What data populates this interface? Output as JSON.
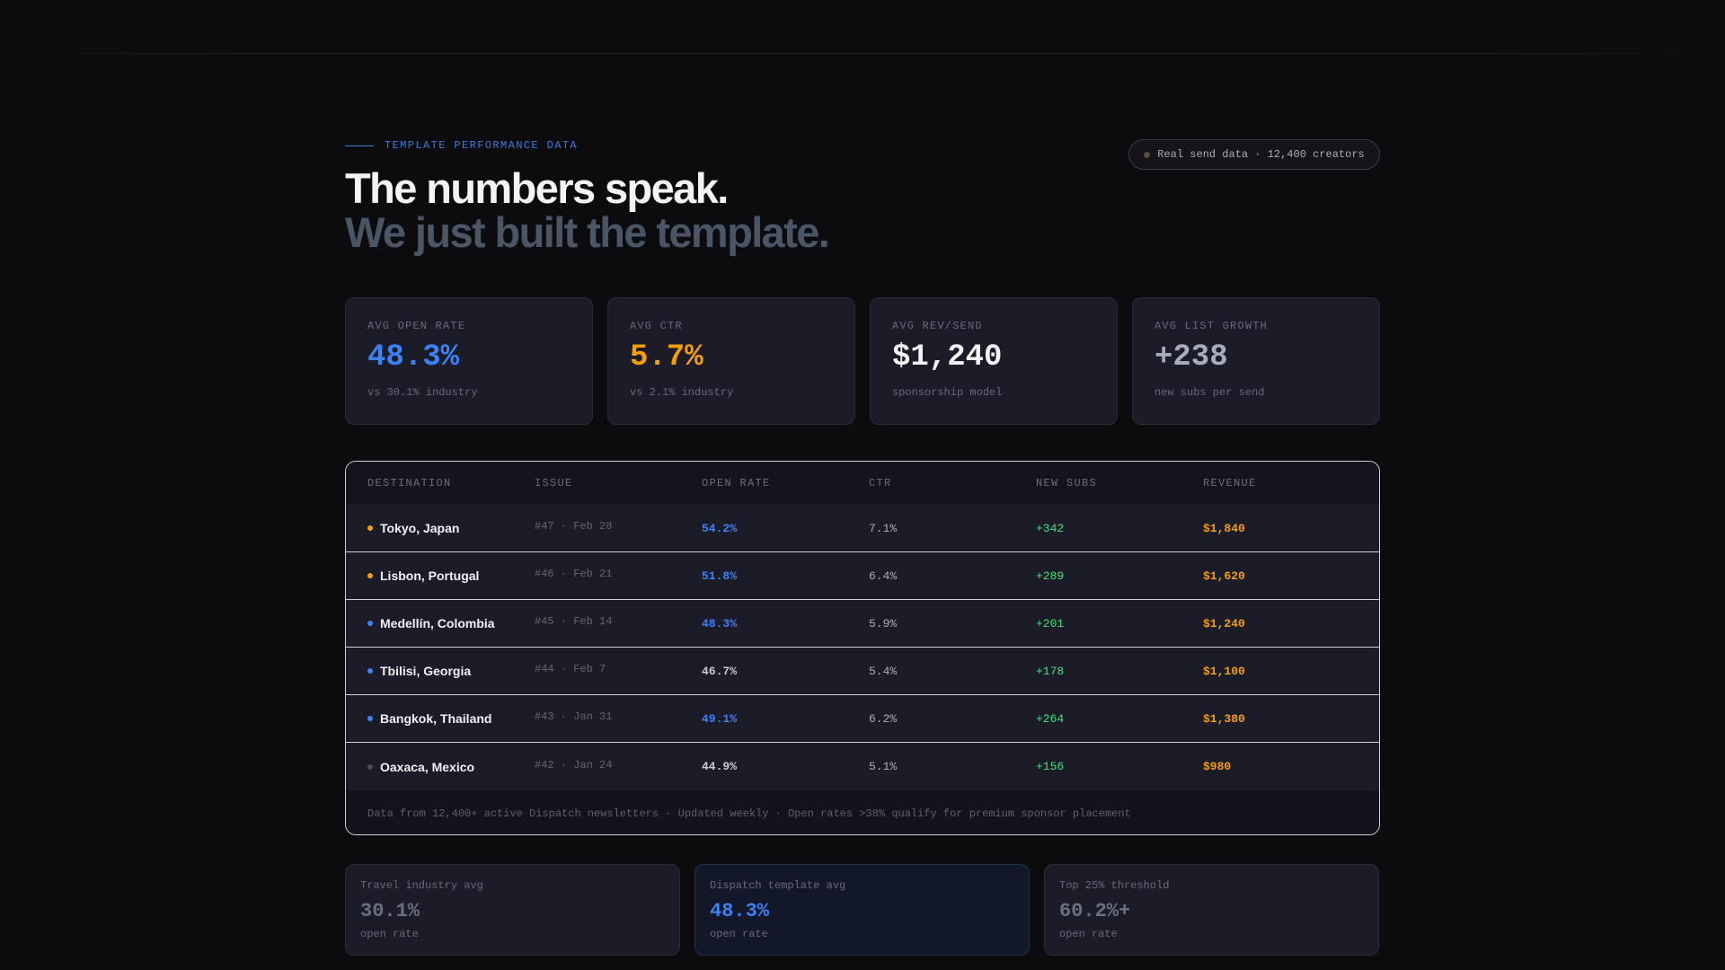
{
  "header": {
    "eyebrow": "TEMPLATE PERFORMANCE DATA",
    "title_line1": "The numbers speak.",
    "title_line2": "We just built the template.",
    "pill": "Real send data · 12,400 creators"
  },
  "stats": [
    {
      "label": "AVG OPEN RATE",
      "value": "48.3%",
      "sub": "vs 30.1% industry",
      "color": "#3b82f6"
    },
    {
      "label": "AVG CTR",
      "value": "5.7%",
      "sub": "vs 2.1% industry",
      "color": "#f59e0b"
    },
    {
      "label": "AVG REV/SEND",
      "value": "$1,240",
      "sub": "sponsorship model",
      "color": "#f4f4f6"
    },
    {
      "label": "AVG LIST GROWTH",
      "value": "+238",
      "sub": "new subs per send",
      "color": "#a6acbd"
    }
  ],
  "table": {
    "headers": [
      "DESTINATION",
      "ISSUE",
      "OPEN RATE",
      "CTR",
      "NEW SUBS",
      "REVENUE"
    ],
    "rows": [
      {
        "destination": "Tokyo, Japan",
        "issue": "#47 · Feb 28",
        "open_rate": "54.2%",
        "ctr": "7.1%",
        "new_subs": "+342",
        "revenue": "$1,840",
        "dot": "#f59e0b",
        "open_color": "#3b82f6"
      },
      {
        "destination": "Lisbon, Portugal",
        "issue": "#46 · Feb 21",
        "open_rate": "51.8%",
        "ctr": "6.4%",
        "new_subs": "+289",
        "revenue": "$1,620",
        "dot": "#f59e0b",
        "open_color": "#3b82f6"
      },
      {
        "destination": "Medellín, Colombia",
        "issue": "#45 · Feb 14",
        "open_rate": "48.3%",
        "ctr": "5.9%",
        "new_subs": "+201",
        "revenue": "$1,240",
        "dot": "#3b82f6",
        "open_color": "#3b82f6"
      },
      {
        "destination": "Tbilisi, Georgia",
        "issue": "#44 · Feb 7",
        "open_rate": "46.7%",
        "ctr": "5.4%",
        "new_subs": "+178",
        "revenue": "$1,100",
        "dot": "#3b82f6",
        "open_color": "#c9cbd3"
      },
      {
        "destination": "Bangkok, Thailand",
        "issue": "#43 · Jan 31",
        "open_rate": "49.1%",
        "ctr": "6.2%",
        "new_subs": "+264",
        "revenue": "$1,380",
        "dot": "#3b82f6",
        "open_color": "#3b82f6"
      },
      {
        "destination": "Oaxaca, Mexico",
        "issue": "#42 · Jan 24",
        "open_rate": "44.9%",
        "ctr": "5.1%",
        "new_subs": "+156",
        "revenue": "$980",
        "dot": "#4a4d58",
        "open_color": "#c9cbd3"
      }
    ],
    "footnote": "Data from 12,400+ active Dispatch newsletters · Updated weekly · Open rates >38% qualify for premium sponsor placement"
  },
  "benchmarks": [
    {
      "label": "Travel industry avg",
      "value": "30.1%",
      "sub": "open rate",
      "color": "#6b7080"
    },
    {
      "label": "Dispatch template avg",
      "value": "48.3%",
      "sub": "open rate",
      "color": "#3b82f6"
    },
    {
      "label": "Top 25% threshold",
      "value": "60.2%+",
      "sub": "open rate",
      "color": "#6b7080"
    }
  ],
  "colors": {
    "ctr": "#a9acb6",
    "new_subs": "#4ade80",
    "revenue": "#f59e0b"
  }
}
